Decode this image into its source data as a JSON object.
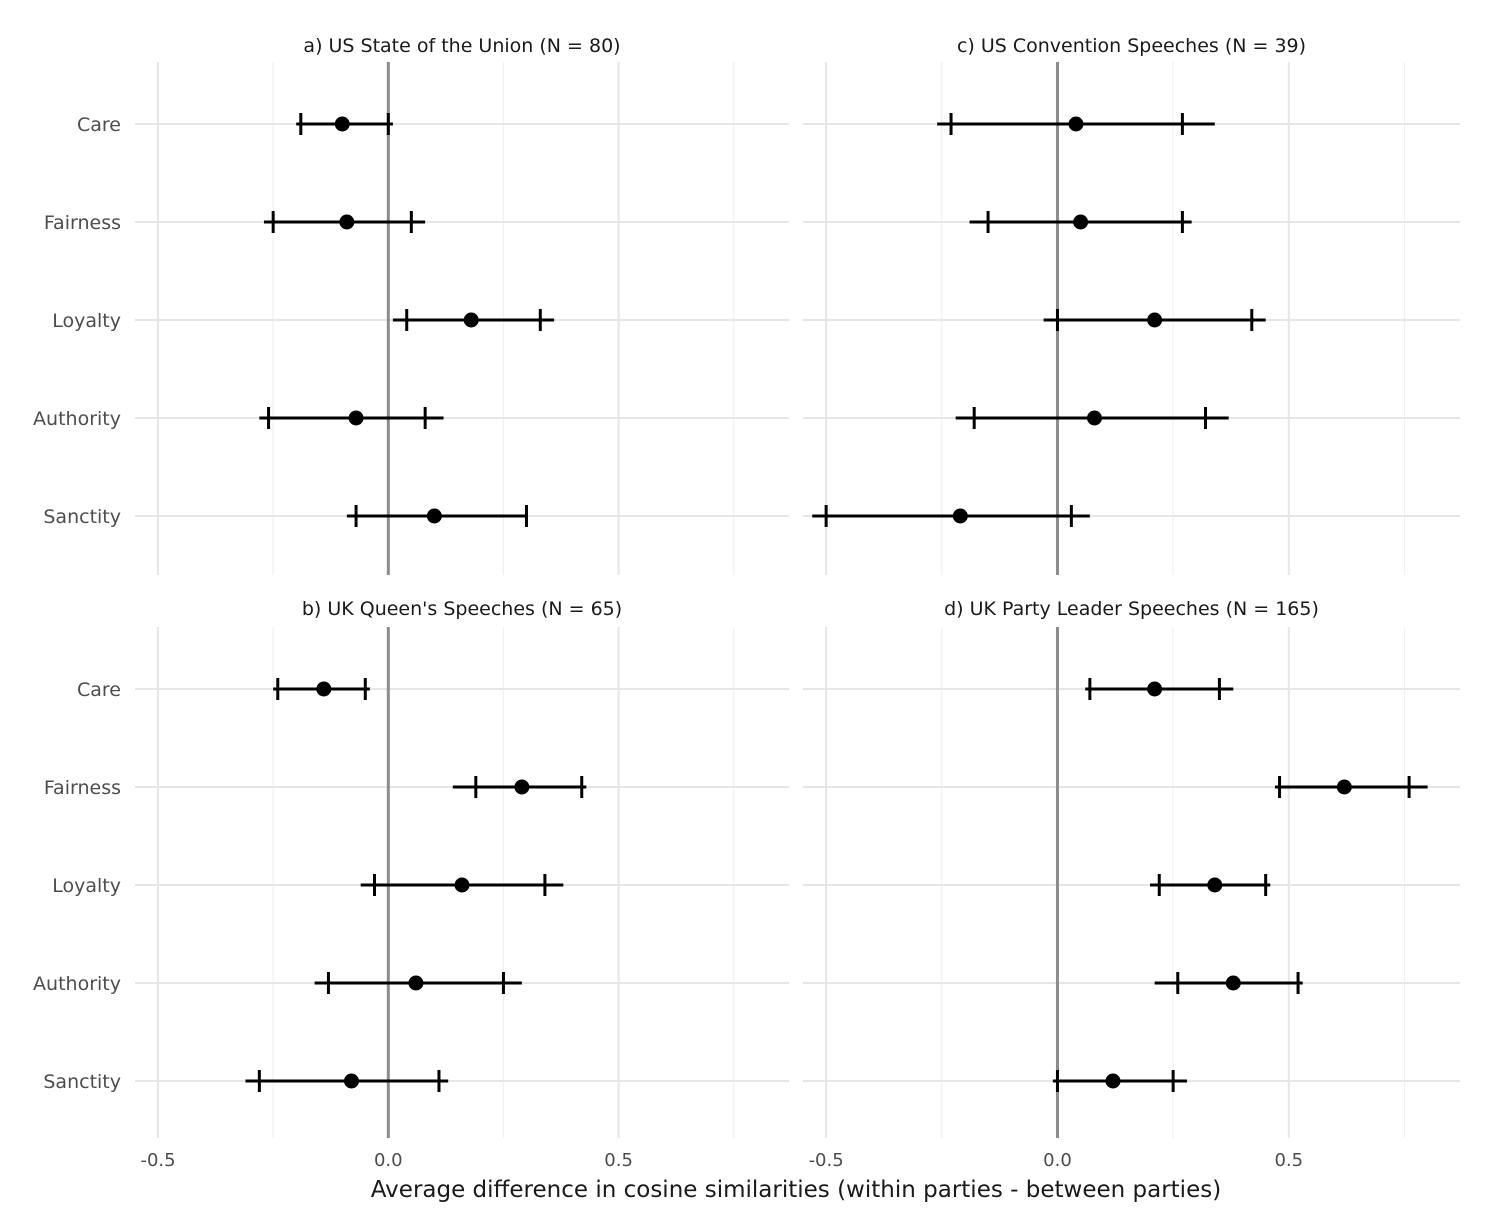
{
  "chart_data": [
    {
      "type": "scatter",
      "panel_id": "a",
      "title": "a) US State of the Union (N = 80)",
      "categories": [
        "Care",
        "Fairness",
        "Loyalty",
        "Authority",
        "Sanctity"
      ],
      "estimate": [
        -0.1,
        -0.09,
        0.18,
        -0.07,
        0.1
      ],
      "ci_outer_low": [
        -0.2,
        -0.27,
        0.01,
        -0.28,
        -0.09
      ],
      "ci_outer_high": [
        0.01,
        0.08,
        0.36,
        0.12,
        0.3
      ],
      "ci_inner_low": [
        -0.19,
        -0.25,
        0.04,
        -0.26,
        -0.07
      ],
      "ci_inner_high": [
        0.0,
        0.05,
        0.33,
        0.08,
        0.3
      ],
      "xlim": [
        -0.55,
        0.87
      ]
    },
    {
      "type": "scatter",
      "panel_id": "c",
      "title": "c) US Convention Speeches (N = 39)",
      "categories": [
        "Care",
        "Fairness",
        "Loyalty",
        "Authority",
        "Sanctity"
      ],
      "estimate": [
        0.04,
        0.05,
        0.21,
        0.08,
        -0.21
      ],
      "ci_outer_low": [
        -0.26,
        -0.19,
        -0.03,
        -0.22,
        -0.53
      ],
      "ci_outer_high": [
        0.34,
        0.29,
        0.45,
        0.37,
        0.07
      ],
      "ci_inner_low": [
        -0.23,
        -0.15,
        0.0,
        -0.18,
        -0.5
      ],
      "ci_inner_high": [
        0.27,
        0.27,
        0.42,
        0.32,
        0.03
      ],
      "xlim": [
        -0.55,
        0.87
      ]
    },
    {
      "type": "scatter",
      "panel_id": "b",
      "title": "b) UK Queen's Speeches (N = 65)",
      "categories": [
        "Care",
        "Fairness",
        "Loyalty",
        "Authority",
        "Sanctity"
      ],
      "estimate": [
        -0.14,
        0.29,
        0.16,
        0.06,
        -0.08
      ],
      "ci_outer_low": [
        -0.25,
        0.14,
        -0.06,
        -0.16,
        -0.31
      ],
      "ci_outer_high": [
        -0.04,
        0.43,
        0.38,
        0.29,
        0.13
      ],
      "ci_inner_low": [
        -0.24,
        0.19,
        -0.03,
        -0.13,
        -0.28
      ],
      "ci_inner_high": [
        -0.05,
        0.42,
        0.34,
        0.25,
        0.11
      ],
      "xlim": [
        -0.55,
        0.87
      ]
    },
    {
      "type": "scatter",
      "panel_id": "d",
      "title": "d) UK Party Leader Speeches (N = 165)",
      "categories": [
        "Care",
        "Fairness",
        "Loyalty",
        "Authority",
        "Sanctity"
      ],
      "estimate": [
        0.21,
        0.62,
        0.34,
        0.38,
        0.12
      ],
      "ci_outer_low": [
        0.06,
        0.47,
        0.2,
        0.21,
        -0.01
      ],
      "ci_outer_high": [
        0.38,
        0.8,
        0.46,
        0.53,
        0.28
      ],
      "ci_inner_low": [
        0.07,
        0.48,
        0.22,
        0.26,
        0.0
      ],
      "ci_inner_high": [
        0.35,
        0.76,
        0.45,
        0.52,
        0.25
      ],
      "xlim": [
        -0.55,
        0.87
      ]
    }
  ],
  "x_ticks": [
    -0.5,
    0.0,
    0.5
  ],
  "x_tick_labels": [
    "-0.5",
    "0.0",
    "0.5"
  ],
  "x_minor_ticks": [
    -0.25,
    0.25,
    0.75
  ],
  "xlabel": "Average difference in cosine similarities (within parties - between parties)",
  "ylabel": "",
  "grid": true,
  "reference_line": 0.0
}
